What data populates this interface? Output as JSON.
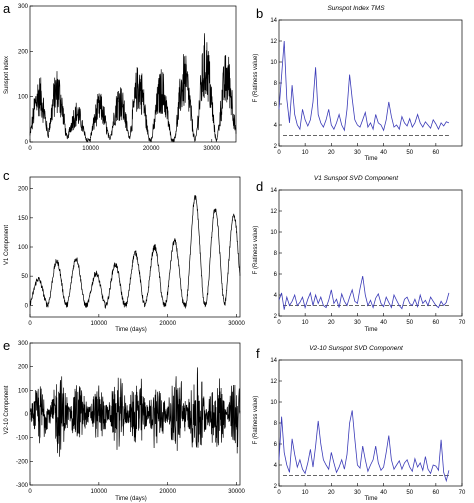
{
  "panels": [
    {
      "letter": "a"
    },
    {
      "letter": "b"
    },
    {
      "letter": "c"
    },
    {
      "letter": "d"
    },
    {
      "letter": "e"
    },
    {
      "letter": "f"
    }
  ],
  "colors": {
    "signal": "#000000",
    "ratio": "#3b3bb8",
    "threshold": "#333333",
    "axis": "#000000"
  },
  "chart_data": [
    {
      "id": "a",
      "type": "line",
      "title": "",
      "xlabel": "",
      "ylabel": "Sunspot index",
      "xlim": [
        0,
        34000
      ],
      "ylim": [
        0,
        300
      ],
      "xticks": [
        0,
        10000,
        20000,
        30000
      ],
      "yticks": [
        0,
        100,
        200,
        300
      ],
      "cycle_peak_x": [
        1500,
        4500,
        7700,
        11500,
        14800,
        18000,
        21700,
        25500,
        29000,
        32500
      ],
      "cycle_peak_y": [
        145,
        160,
        85,
        105,
        130,
        175,
        160,
        195,
        240,
        200
      ],
      "series": [
        {
          "values_note": "",
          "values": []
        }
      ]
    },
    {
      "id": "b",
      "type": "line",
      "title": "Sunspot Index TMS",
      "xlabel": "Time",
      "ylabel": "F (Ratiness value)",
      "xlim": [
        0,
        70
      ],
      "ylim": [
        2,
        14
      ],
      "xticks": [
        0,
        10,
        20,
        30,
        40,
        50,
        60
      ],
      "yticks": [
        2,
        4,
        6,
        8,
        10,
        12,
        14
      ],
      "threshold": 3,
      "x": [
        0,
        1,
        2,
        3,
        4,
        5,
        6,
        7,
        8,
        9,
        10,
        11,
        12,
        13,
        14,
        15,
        16,
        17,
        18,
        19,
        20,
        21,
        22,
        23,
        24,
        25,
        26,
        27,
        28,
        29,
        30,
        31,
        32,
        33,
        34,
        35,
        36,
        37,
        38,
        39,
        40,
        41,
        42,
        43,
        44,
        45,
        46,
        47,
        48,
        49,
        50,
        51,
        52,
        53,
        54,
        55,
        56,
        57,
        58,
        59,
        60,
        61,
        62,
        63,
        64,
        65
      ],
      "y": [
        5.5,
        8.7,
        12.0,
        6.5,
        4.2,
        7.8,
        5.0,
        4.0,
        3.6,
        5.5,
        4.5,
        3.9,
        4.5,
        6.2,
        9.5,
        5.0,
        4.2,
        3.8,
        4.5,
        5.5,
        4.0,
        3.6,
        4.2,
        5.0,
        4.0,
        3.5,
        5.5,
        8.8,
        6.5,
        4.5,
        4.0,
        3.8,
        4.5,
        5.2,
        3.8,
        4.2,
        3.6,
        5.0,
        4.2,
        4.0,
        3.5,
        4.5,
        6.2,
        4.8,
        3.8,
        4.0,
        3.6,
        4.8,
        4.2,
        3.9,
        4.6,
        3.8,
        4.2,
        5.0,
        4.2,
        3.8,
        4.3,
        4.0,
        3.7,
        4.5,
        4.1,
        3.6,
        4.2,
        3.9,
        4.3,
        4.2
      ]
    },
    {
      "id": "c",
      "type": "line",
      "title": "",
      "xlabel": "Time (days)",
      "ylabel": "V1 Component",
      "xlim": [
        0,
        30500
      ],
      "ylim": [
        -20,
        220
      ],
      "xticks": [
        0,
        10000,
        20000,
        30000
      ],
      "yticks": [
        0,
        50,
        100,
        150,
        200
      ],
      "cycle_peak_x": [
        1200,
        3900,
        6700,
        9600,
        12400,
        15300,
        18100,
        21000,
        24000,
        26900,
        29600
      ],
      "cycle_peak_y": [
        45,
        75,
        80,
        55,
        70,
        90,
        100,
        110,
        185,
        165,
        155
      ]
    },
    {
      "id": "d",
      "type": "line",
      "title": "V1 Sunspot SVD Component",
      "xlabel": "Time",
      "ylabel": "F (Ratiness value)",
      "xlim": [
        0,
        70
      ],
      "ylim": [
        2,
        14
      ],
      "xticks": [
        0,
        10,
        20,
        30,
        40,
        50,
        60,
        70
      ],
      "yticks": [
        2,
        4,
        6,
        8,
        10,
        12,
        14
      ],
      "threshold": 3,
      "x": [
        0,
        1,
        2,
        3,
        4,
        5,
        6,
        7,
        8,
        9,
        10,
        11,
        12,
        13,
        14,
        15,
        16,
        17,
        18,
        19,
        20,
        21,
        22,
        23,
        24,
        25,
        26,
        27,
        28,
        29,
        30,
        31,
        32,
        33,
        34,
        35,
        36,
        37,
        38,
        39,
        40,
        41,
        42,
        43,
        44,
        45,
        46,
        47,
        48,
        49,
        50,
        51,
        52,
        53,
        54,
        55,
        56,
        57,
        58,
        59,
        60,
        61,
        62,
        63,
        64,
        65
      ],
      "y": [
        3.5,
        4.2,
        2.6,
        3.8,
        3.0,
        3.4,
        4.0,
        3.0,
        3.3,
        3.8,
        2.8,
        3.6,
        4.2,
        3.0,
        4.0,
        3.2,
        3.8,
        3.0,
        2.8,
        3.5,
        4.5,
        3.2,
        3.6,
        2.8,
        4.1,
        3.4,
        3.0,
        3.8,
        4.5,
        3.4,
        3.2,
        4.6,
        5.8,
        4.0,
        3.0,
        3.5,
        2.8,
        3.7,
        4.1,
        3.2,
        2.9,
        3.8,
        3.3,
        2.8,
        4.0,
        3.5,
        3.0,
        2.7,
        3.6,
        3.8,
        3.2,
        3.0,
        3.6,
        2.9,
        4.0,
        3.2,
        3.5,
        3.0,
        3.8,
        3.4,
        3.0,
        2.8,
        3.4,
        3.0,
        3.3,
        4.2
      ]
    },
    {
      "id": "e",
      "type": "line",
      "title": "",
      "xlabel": "Time (days)",
      "ylabel": "V2-10 Component",
      "xlim": [
        0,
        30500
      ],
      "ylim": [
        -300,
        300
      ],
      "xticks": [
        0,
        10000,
        20000,
        30000
      ],
      "yticks": [
        -300,
        -200,
        -100,
        0,
        100,
        200,
        300
      ],
      "cycle_peak_x": [
        1500,
        4300,
        7100,
        10000,
        12800,
        15700,
        18500,
        21400,
        24300,
        27200,
        30000
      ],
      "cycle_peak_y": [
        150,
        200,
        160,
        140,
        175,
        195,
        170,
        210,
        230,
        200,
        190
      ]
    },
    {
      "id": "f",
      "type": "line",
      "title": "V2-10 Sunspot SVD Component",
      "xlabel": "Time",
      "ylabel": "F (Ratiness value)",
      "xlim": [
        0,
        70
      ],
      "ylim": [
        2,
        14
      ],
      "xticks": [
        0,
        10,
        20,
        30,
        40,
        50,
        60,
        70
      ],
      "yticks": [
        2,
        4,
        6,
        8,
        10,
        12,
        14
      ],
      "threshold": 3,
      "x": [
        0,
        1,
        2,
        3,
        4,
        5,
        6,
        7,
        8,
        9,
        10,
        11,
        12,
        13,
        14,
        15,
        16,
        17,
        18,
        19,
        20,
        21,
        22,
        23,
        24,
        25,
        26,
        27,
        28,
        29,
        30,
        31,
        32,
        33,
        34,
        35,
        36,
        37,
        38,
        39,
        40,
        41,
        42,
        43,
        44,
        45,
        46,
        47,
        48,
        49,
        50,
        51,
        52,
        53,
        54,
        55,
        56,
        57,
        58,
        59,
        60,
        61,
        62,
        63,
        64,
        65
      ],
      "y": [
        4.5,
        8.6,
        5.2,
        4.0,
        3.3,
        6.5,
        5.0,
        3.8,
        4.5,
        3.6,
        3.2,
        4.2,
        5.5,
        3.8,
        5.8,
        8.2,
        6.0,
        4.5,
        4.0,
        3.6,
        5.2,
        4.2,
        3.3,
        3.8,
        4.5,
        3.6,
        5.0,
        8.0,
        9.2,
        6.5,
        4.0,
        3.7,
        5.8,
        4.5,
        3.4,
        4.0,
        4.5,
        5.8,
        4.2,
        3.5,
        3.8,
        5.2,
        6.8,
        4.5,
        3.6,
        4.0,
        4.4,
        3.6,
        4.2,
        4.5,
        3.8,
        3.4,
        4.6,
        3.8,
        4.2,
        3.5,
        4.8,
        3.6,
        3.2,
        4.0,
        3.9,
        3.5,
        6.4,
        3.3,
        2.5,
        3.5
      ]
    }
  ]
}
